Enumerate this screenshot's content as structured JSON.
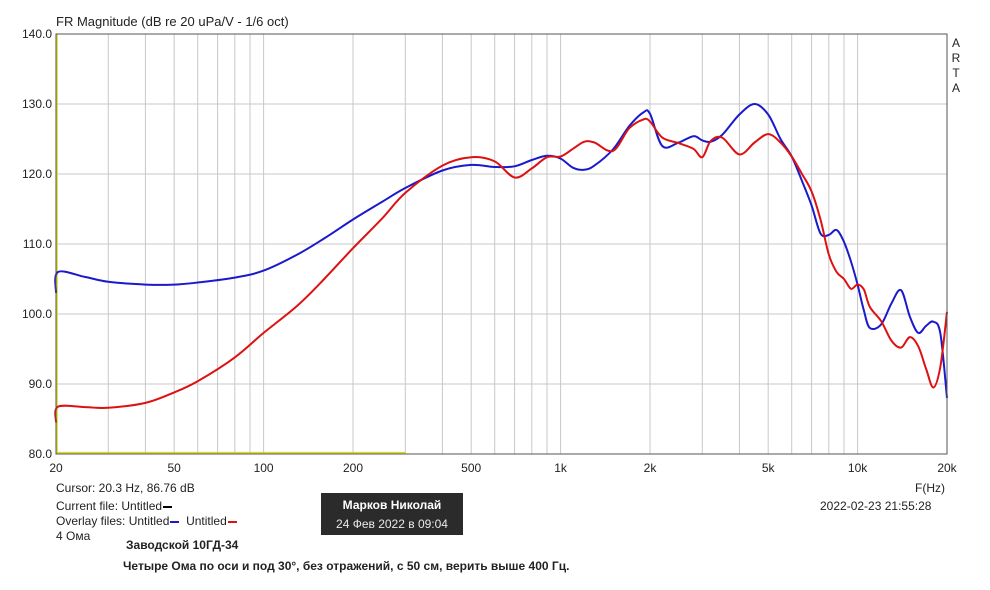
{
  "chart_data": {
    "type": "line",
    "title": "FR Magnitude (dB re 20 uPa/V - 1/6 oct)",
    "xlabel": "F(Hz)",
    "xscale": "log",
    "xlim": [
      20,
      20000
    ],
    "ylim": [
      80,
      140
    ],
    "yticks": [
      "140.0",
      "130.0",
      "120.0",
      "110.0",
      "100.0",
      "90.0",
      "80.0"
    ],
    "xticks": [
      {
        "f": 20,
        "label": "20"
      },
      {
        "f": 50,
        "label": "50"
      },
      {
        "f": 100,
        "label": "100"
      },
      {
        "f": 200,
        "label": "200"
      },
      {
        "f": 500,
        "label": "500"
      },
      {
        "f": 1000,
        "label": "1k"
      },
      {
        "f": 2000,
        "label": "2k"
      },
      {
        "f": 5000,
        "label": "5k"
      },
      {
        "f": 10000,
        "label": "10k"
      },
      {
        "f": 20000,
        "label": "20k"
      }
    ],
    "grid": true,
    "cursor_x": 20.3,
    "gate": {
      "x": [
        20,
        300
      ],
      "y": 80.2,
      "color": "#d8d820"
    },
    "series": [
      {
        "color": "#1a1acc",
        "x": [
          20,
          20.3,
          25,
          30,
          40,
          50,
          60,
          80,
          100,
          130,
          160,
          200,
          250,
          300,
          400,
          500,
          600,
          700,
          800,
          900,
          1000,
          1100,
          1200,
          1300,
          1500,
          1700,
          1900,
          2000,
          2200,
          2500,
          2800,
          3000,
          3200,
          3500,
          4000,
          4500,
          5000,
          5500,
          6000,
          6500,
          7000,
          7500,
          8000,
          8500,
          9000,
          9500,
          10000,
          10500,
          11000,
          12000,
          13000,
          14000,
          15000,
          16000,
          17000,
          18000,
          19000,
          20000
        ],
        "y": [
          103,
          106,
          105.3,
          104.6,
          104.2,
          104.2,
          104.5,
          105.2,
          106.2,
          108.5,
          110.8,
          113.5,
          116,
          118,
          120.5,
          121.3,
          121,
          121.1,
          122,
          122.6,
          122.2,
          120.9,
          120.6,
          121.2,
          123.5,
          126.8,
          128.8,
          128.6,
          124,
          124.5,
          125.4,
          124.8,
          124.6,
          125.6,
          128.5,
          130,
          128.5,
          125,
          122.5,
          119,
          115.5,
          111.5,
          111.3,
          112,
          110.3,
          107.5,
          104.2,
          100.5,
          98,
          98.5,
          101.5,
          103.4,
          99.6,
          97.3,
          98.3,
          98.9,
          97.2,
          88
        ]
      },
      {
        "color": "#dd1111",
        "x": [
          20,
          20.3,
          25,
          30,
          40,
          50,
          60,
          80,
          100,
          130,
          160,
          200,
          250,
          300,
          400,
          500,
          600,
          700,
          800,
          900,
          1000,
          1100,
          1200,
          1300,
          1500,
          1700,
          1900,
          2000,
          2200,
          2500,
          2800,
          3000,
          3200,
          3500,
          4000,
          4500,
          5000,
          5500,
          6000,
          6500,
          7000,
          7500,
          8000,
          8500,
          9000,
          9500,
          10000,
          10500,
          11000,
          12000,
          13000,
          14000,
          15000,
          16000,
          17000,
          18000,
          19000,
          20000
        ],
        "y": [
          84.5,
          86.76,
          86.7,
          86.6,
          87.3,
          88.8,
          90.4,
          93.8,
          97.3,
          101.2,
          105,
          109.4,
          113.6,
          117.3,
          121.2,
          122.4,
          121.8,
          119.5,
          120.8,
          122.4,
          122.5,
          123.6,
          124.6,
          124.5,
          123.3,
          126.5,
          127.8,
          127.5,
          125.2,
          124.4,
          123.6,
          122.4,
          124.7,
          125.2,
          122.8,
          124.5,
          125.7,
          124.5,
          122.5,
          120,
          117.5,
          113.5,
          108.5,
          106,
          105,
          103.6,
          104.2,
          103.5,
          101,
          99,
          96.2,
          95.2,
          96.7,
          95.4,
          92.2,
          89.5,
          92.5,
          100.3
        ]
      }
    ]
  },
  "arta_letters": [
    "A",
    "R",
    "T",
    "A"
  ],
  "cursor_text": "Cursor: 20.3 Hz, 86.76 dB",
  "current_file_label": "Current file:",
  "current_file_name": "Untitled",
  "overlay_label": "Overlay files:",
  "overlay_name_1": "Untitled",
  "overlay_name_2": "Untitled",
  "impedance_text": "4 Ома",
  "timestamp": "2022-02-23   21:55:28",
  "legend_colors": {
    "current": "#000000",
    "overlay1": "#1a1acc",
    "overlay2": "#dd1111"
  },
  "author_name": "Марков Николай",
  "post_date": "24 Фев 2022 в 09:04",
  "heading": "Заводской 10ГД-34",
  "description": "Четыре Ома по оси и под 30°, без отражений, с 50 см, верить выше 400 Гц."
}
